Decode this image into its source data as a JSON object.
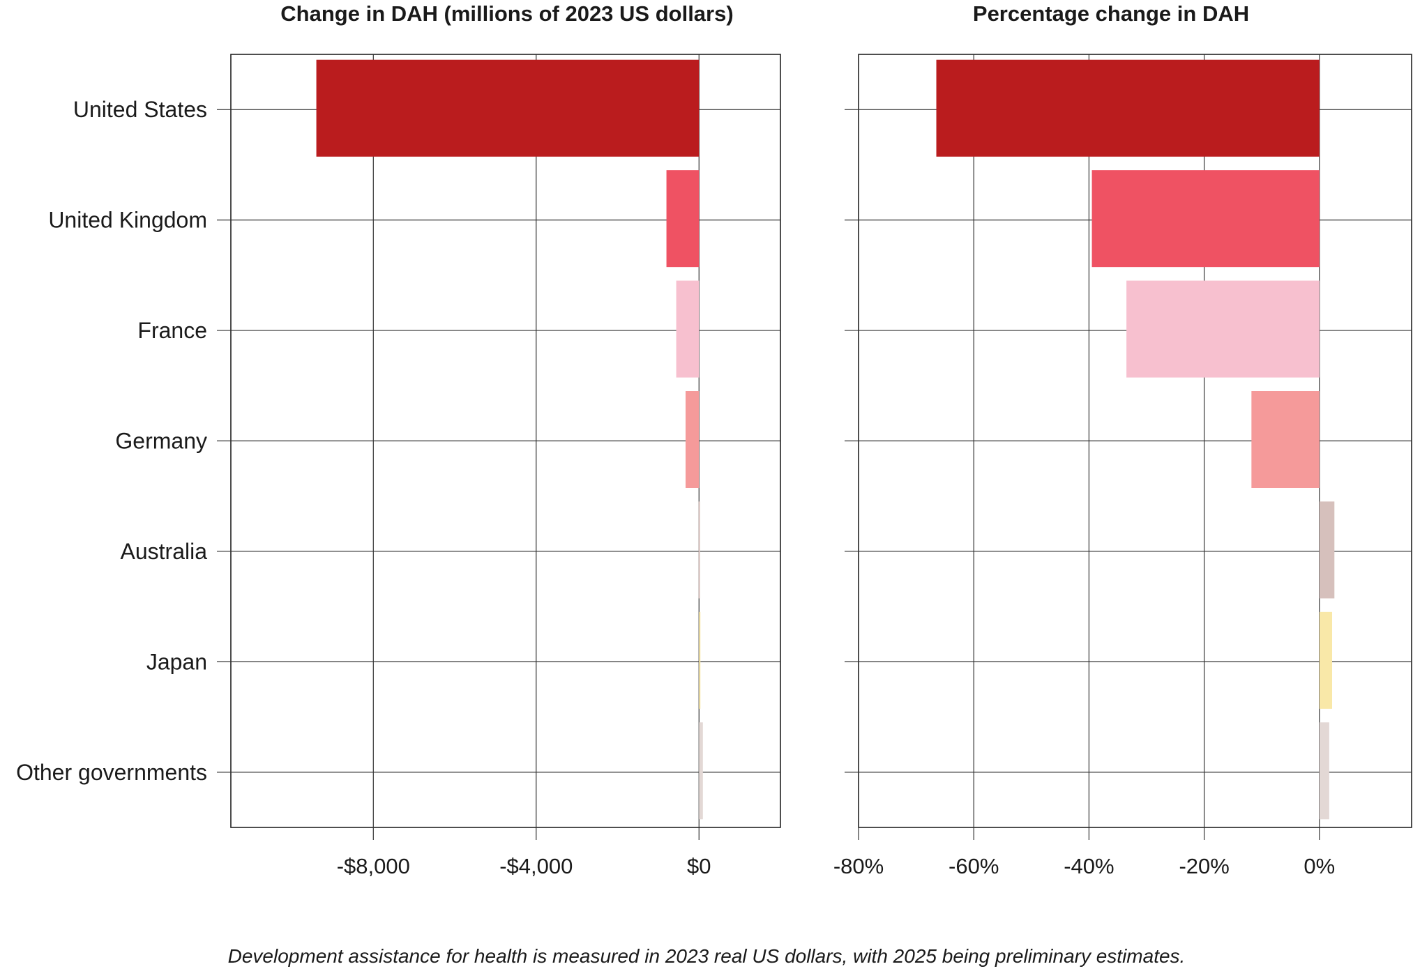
{
  "chart_data": [
    {
      "type": "bar",
      "orientation": "horizontal",
      "title": "Change in DAH (millions of 2023 US dollars)",
      "categories": [
        "United States",
        "United Kingdom",
        "France",
        "Germany",
        "Australia",
        "Japan",
        "Other governments"
      ],
      "values": [
        -9400,
        -800,
        -560,
        -330,
        -10,
        10,
        95
      ],
      "xlim": [
        -11500,
        2000
      ],
      "xticks": [
        -8000,
        -4000,
        0
      ],
      "xtick_labels": [
        "-$8,000",
        "-$4,000",
        "$0"
      ],
      "grid": true
    },
    {
      "type": "bar",
      "orientation": "horizontal",
      "title": "Percentage change in DAH",
      "categories": [
        "United States",
        "United Kingdom",
        "France",
        "Germany",
        "Australia",
        "Japan",
        "Other governments"
      ],
      "values": [
        -66.5,
        -39.5,
        -33.5,
        -11.8,
        2.6,
        2.2,
        1.7
      ],
      "xlim": [
        -80,
        16
      ],
      "xticks": [
        -80,
        -60,
        -40,
        -20,
        0
      ],
      "xtick_labels": [
        "-80%",
        "-60%",
        "-40%",
        "-20%",
        "0%"
      ],
      "grid": true
    }
  ],
  "colors": [
    "#ba1c1e",
    "#ef5263",
    "#f7c0cf",
    "#f59a9a",
    "#d6c0bc",
    "#f9e8a8",
    "#e3d8d5"
  ],
  "footnote": "Development assistance for health is measured in 2023 real US dollars, with 2025 being preliminary estimates."
}
